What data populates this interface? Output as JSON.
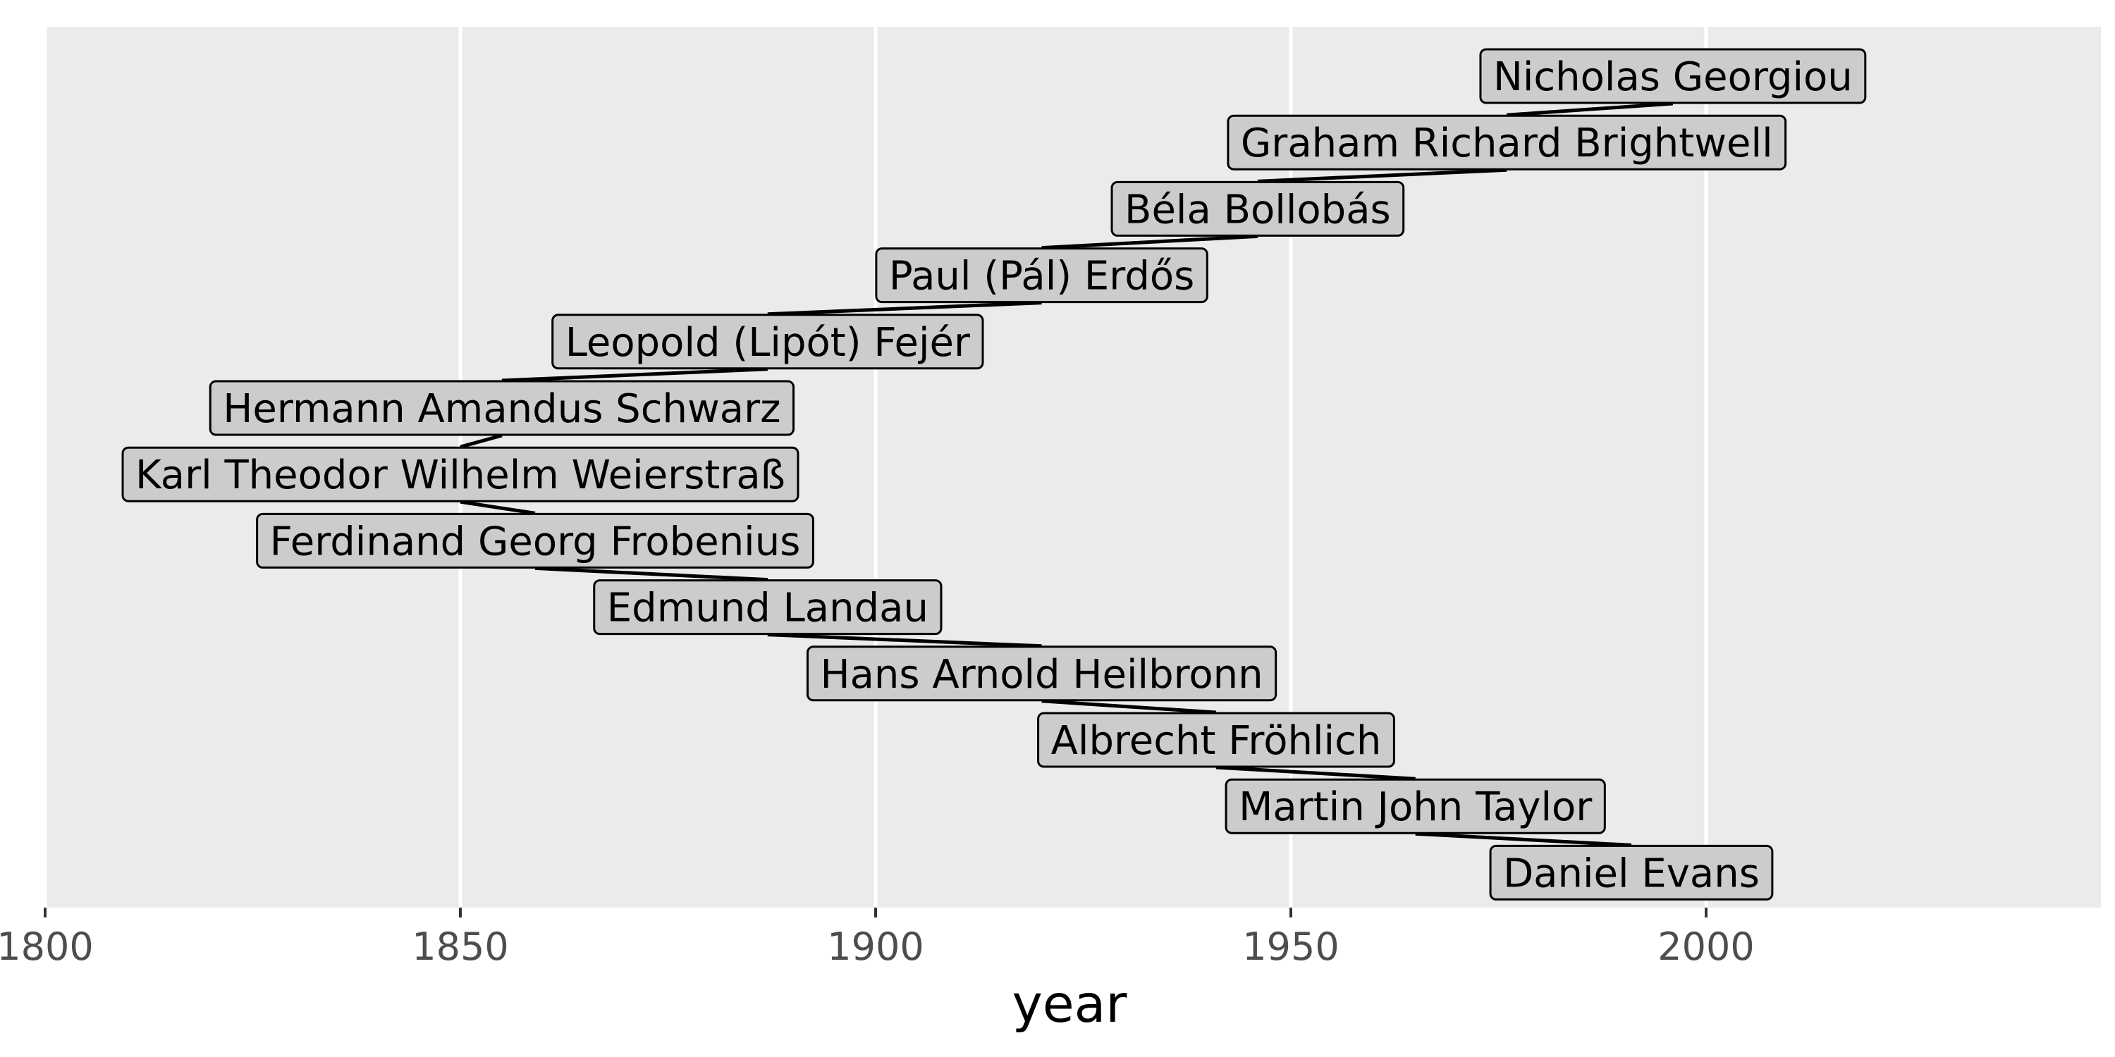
{
  "chart_data": {
    "type": "scatter",
    "xlabel": "year",
    "ylabel": "",
    "xlim": [
      1800,
      2047
    ],
    "xticks": [
      1800,
      1850,
      1900,
      1950,
      2000
    ],
    "xtick_labels": [
      "1800",
      "1850",
      "1900",
      "1950",
      "2000"
    ],
    "grid": true,
    "legend": "none",
    "points": [
      {
        "label": "Nicholas Georgiou",
        "x": 1996
      },
      {
        "label": "Graham Richard Brightwell",
        "x": 1976
      },
      {
        "label": "Béla Bollobás",
        "x": 1946
      },
      {
        "label": "Paul (Pál) Erdős",
        "x": 1920
      },
      {
        "label": "Leopold (Lipót) Fejér",
        "x": 1887
      },
      {
        "label": "Hermann Amandus Schwarz",
        "x": 1855
      },
      {
        "label": "Karl Theodor Wilhelm Weierstraß",
        "x": 1850
      },
      {
        "label": "Ferdinand Georg Frobenius",
        "x": 1859
      },
      {
        "label": "Edmund Landau",
        "x": 1887
      },
      {
        "label": "Hans Arnold Heilbronn",
        "x": 1920
      },
      {
        "label": "Albrecht Fröhlich",
        "x": 1941
      },
      {
        "label": "Martin John Taylor",
        "x": 1965
      },
      {
        "label": "Daniel Evans",
        "x": 1991
      }
    ]
  }
}
